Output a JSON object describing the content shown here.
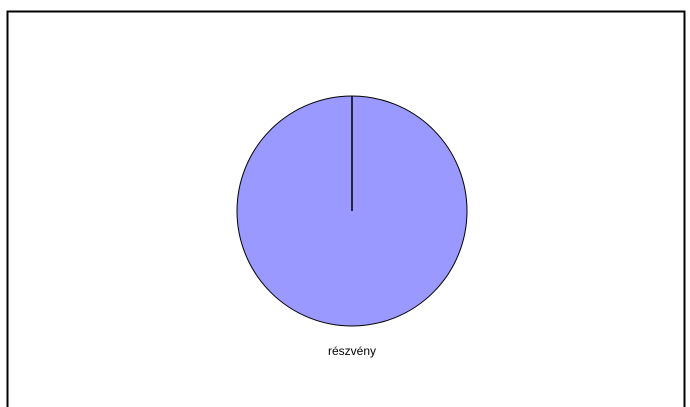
{
  "chart_data": {
    "type": "pie",
    "categories": [
      "részvény"
    ],
    "values": [
      100
    ],
    "colors": [
      "#9999ff"
    ]
  }
}
